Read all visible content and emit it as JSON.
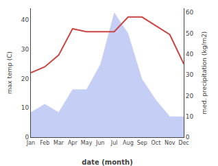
{
  "chart_data": {
    "type": "line",
    "xlabel": "date (month)",
    "ylabel": "max temp (C)",
    "y2label": "med. precipitation (kg/m2)",
    "categories": [
      "Jan",
      "Feb",
      "Mar",
      "Apr",
      "May",
      "Jun",
      "Jul",
      "Aug",
      "Sep",
      "Oct",
      "Nov",
      "Dec"
    ],
    "series": [
      {
        "type": "area",
        "color": "#c5cff5",
        "axis": "y2",
        "values": [
          12,
          16,
          12,
          23,
          23,
          35,
          60,
          50,
          28,
          18,
          10,
          10
        ]
      },
      {
        "type": "line",
        "color": "#cc4444",
        "values": [
          22,
          24,
          28,
          37,
          36,
          36,
          36,
          41,
          41,
          38,
          35,
          25
        ]
      }
    ],
    "ylim": [
      0,
      44
    ],
    "yticks": [
      0,
      10,
      20,
      30,
      40
    ],
    "y2lim": [
      0,
      62
    ],
    "y2ticks": [
      0,
      10,
      20,
      30,
      40,
      50,
      60
    ],
    "grid": false
  }
}
